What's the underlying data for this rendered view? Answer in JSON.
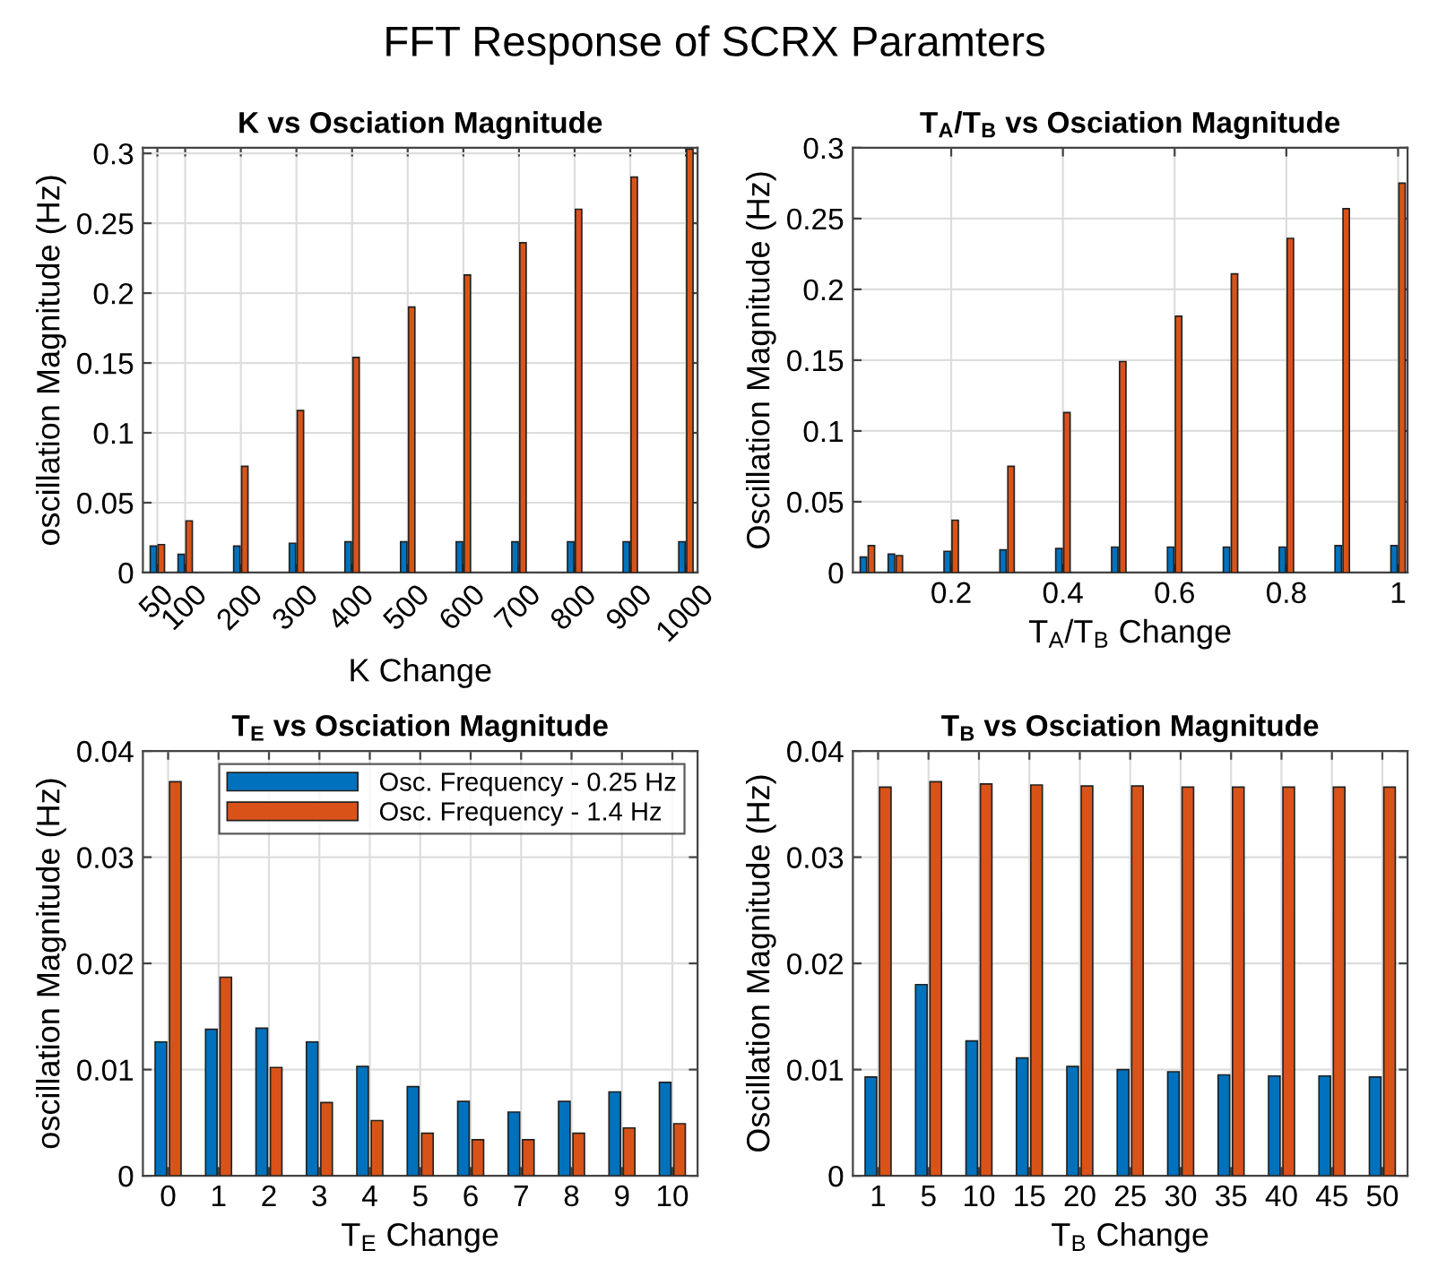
{
  "chart_data": [
    {
      "type": "bar",
      "annotations": [
        "FFT Response of SCRX Paramters"
      ],
      "title": "K vs Osciation Magnitude",
      "xlabel": "K Change",
      "ylabel": "oscillation Magnitude (Hz)",
      "x": [
        50,
        100,
        200,
        300,
        400,
        500,
        600,
        700,
        800,
        900,
        1000
      ],
      "xlim": [
        24,
        1021
      ],
      "xticks": [
        50,
        100,
        200,
        300,
        400,
        500,
        600,
        700,
        800,
        900,
        1000
      ],
      "ylim": [
        0,
        0.304
      ],
      "yticks": [
        0,
        0.05,
        0.1,
        0.15,
        0.2,
        0.25,
        0.3
      ],
      "grid": true,
      "series": [
        {
          "color": "#0072bd",
          "values": [
            0.019,
            0.013,
            0.019,
            0.021,
            0.022,
            0.022,
            0.022,
            0.022,
            0.022,
            0.022,
            0.022
          ]
        },
        {
          "color": "#d95319",
          "values": [
            0.02,
            0.037,
            0.076,
            0.116,
            0.154,
            0.19,
            0.213,
            0.236,
            0.26,
            0.283,
            0.303
          ]
        }
      ]
    },
    {
      "type": "bar",
      "title": "T$_{A}$/T$_{B}$ vs Osciation Magnitude",
      "xlabel": "T$_{A}$/T$_{B}$ Change",
      "ylabel": "Oscillation Magnitude (Hz)",
      "x": [
        0.05,
        0.1,
        0.2,
        0.3,
        0.4,
        0.5,
        0.6,
        0.7,
        0.8,
        0.9,
        1
      ],
      "xlim": [
        0.024,
        1.017
      ],
      "xticks": [
        0.2,
        0.4,
        0.6,
        0.8,
        1
      ],
      "ylim": [
        0,
        0.3
      ],
      "yticks": [
        0,
        0.05,
        0.1,
        0.15,
        0.2,
        0.25,
        0.3
      ],
      "grid": true,
      "series": [
        {
          "color": "#0072bd",
          "values": [
            0.011,
            0.013,
            0.015,
            0.016,
            0.017,
            0.018,
            0.018,
            0.018,
            0.018,
            0.019,
            0.019
          ]
        },
        {
          "color": "#d95319",
          "values": [
            0.019,
            0.012,
            0.037,
            0.075,
            0.113,
            0.149,
            0.181,
            0.211,
            0.236,
            0.257,
            0.275
          ]
        }
      ]
    },
    {
      "type": "bar",
      "title": "T$_{E}$ vs Osciation Magnitude",
      "xlabel": "T$_{E}$ Change",
      "ylabel": "oscillation Magnitude (Hz)",
      "categories": [
        "0",
        "1",
        "2",
        "3",
        "4",
        "5",
        "6",
        "7",
        "8",
        "9",
        "10"
      ],
      "ylim": [
        0,
        0.04
      ],
      "yticks": [
        0,
        0.01,
        0.02,
        0.03,
        0.04
      ],
      "grid": true,
      "legend": "top right",
      "series": [
        {
          "name": "Osc. Frequency - 0.25 Hz",
          "color": "#0072bd",
          "values": [
            0.0126,
            0.0138,
            0.0139,
            0.0126,
            0.0103,
            0.0084,
            0.007,
            0.006,
            0.007,
            0.0079,
            0.0088
          ]
        },
        {
          "name": "Osc. Frequency - 1.4 Hz",
          "color": "#d95319",
          "values": [
            0.0371,
            0.0187,
            0.0102,
            0.0069,
            0.0052,
            0.004,
            0.0034,
            0.0034,
            0.004,
            0.0045,
            0.0049
          ]
        }
      ]
    },
    {
      "type": "bar",
      "title": "T$_{B}$ vs Osciation Magnitude",
      "xlabel": "T$_{B}$ Change",
      "ylabel": "Oscillation Magnitude (Hz)",
      "categories": [
        "1",
        "5",
        "10",
        "15",
        "20",
        "25",
        "30",
        "35",
        "40",
        "45",
        "50"
      ],
      "ylim": [
        0,
        0.04
      ],
      "yticks": [
        0,
        0.01,
        0.02,
        0.03,
        0.04
      ],
      "grid": true,
      "series": [
        {
          "color": "#0072bd",
          "values": [
            0.0093,
            0.018,
            0.0127,
            0.0111,
            0.0103,
            0.01,
            0.0098,
            0.0095,
            0.0094,
            0.0094,
            0.0093
          ]
        },
        {
          "color": "#d95319",
          "values": [
            0.0366,
            0.0371,
            0.0369,
            0.0368,
            0.0367,
            0.0367,
            0.0366,
            0.0366,
            0.0366,
            0.0366,
            0.0366
          ]
        }
      ]
    }
  ]
}
